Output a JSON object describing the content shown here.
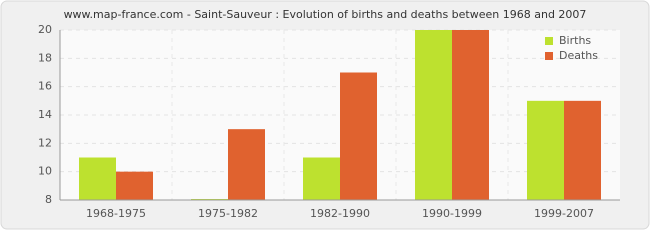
{
  "chart_data": {
    "type": "bar",
    "title": "www.map-france.com - Saint-Sauveur : Evolution of births and deaths between 1968 and 2007",
    "categories": [
      "1968-1975",
      "1975-1982",
      "1982-1990",
      "1990-1999",
      "1999-2007"
    ],
    "series": [
      {
        "name": "Births",
        "color": "#bde12f",
        "values": [
          11,
          8,
          11,
          20,
          15
        ]
      },
      {
        "name": "Deaths",
        "color": "#e0622f",
        "values": [
          10,
          13,
          17,
          20,
          15
        ]
      }
    ],
    "ylim": [
      8,
      20
    ],
    "yticks": [
      8,
      10,
      12,
      14,
      16,
      18,
      20
    ],
    "grid": true,
    "legend": "top-right"
  }
}
